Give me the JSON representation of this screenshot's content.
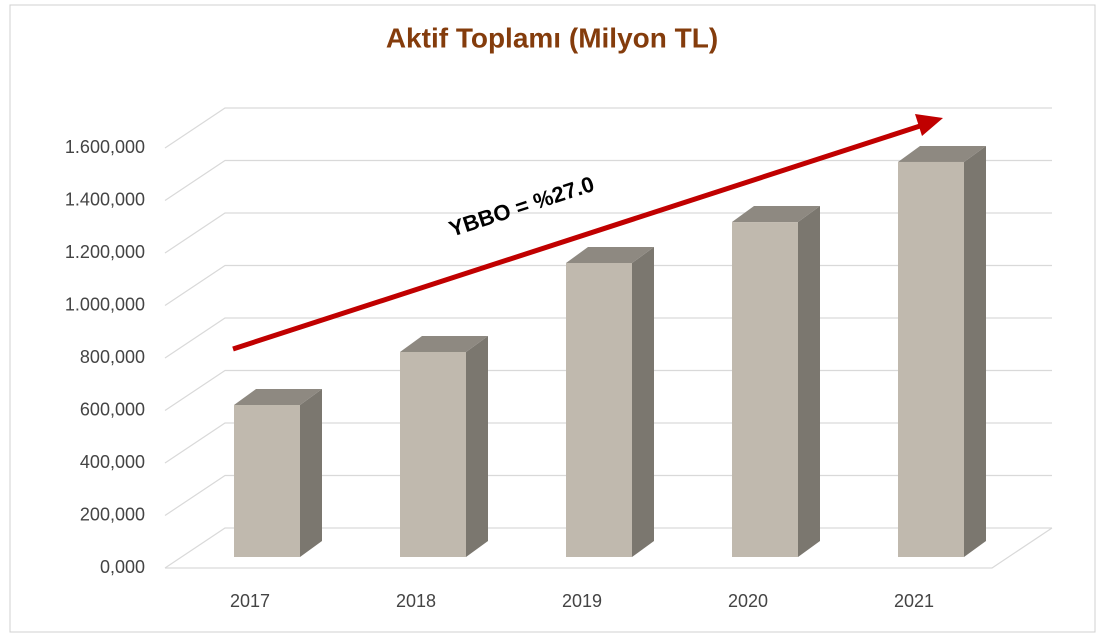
{
  "chart_data": {
    "type": "bar3d",
    "title": "Aktif Toplamı (Milyon TL)",
    "annotation": "YBBO = %27.0",
    "categories": [
      "2017",
      "2018",
      "2019",
      "2020",
      "2021"
    ],
    "values": [
      579,
      781,
      1120,
      1276,
      1505
    ],
    "colors": {
      "front": "#c0b9ae",
      "top": "#8e8981",
      "side": "#7b776f"
    },
    "arrow_color": "#c00000",
    "ylim": [
      0,
      1600
    ],
    "yticks": [
      {
        "value": 0,
        "label": "0,000"
      },
      {
        "value": 200,
        "label": "200,000"
      },
      {
        "value": 400,
        "label": "400,000"
      },
      {
        "value": 600,
        "label": "600,000"
      },
      {
        "value": 800,
        "label": "800,000"
      },
      {
        "value": 1000,
        "label": "1.000,000"
      },
      {
        "value": 1200,
        "label": "1.200,000"
      },
      {
        "value": 1400,
        "label": "1.400,000"
      },
      {
        "value": 1600,
        "label": "1.600,000"
      }
    ],
    "grid": true
  }
}
